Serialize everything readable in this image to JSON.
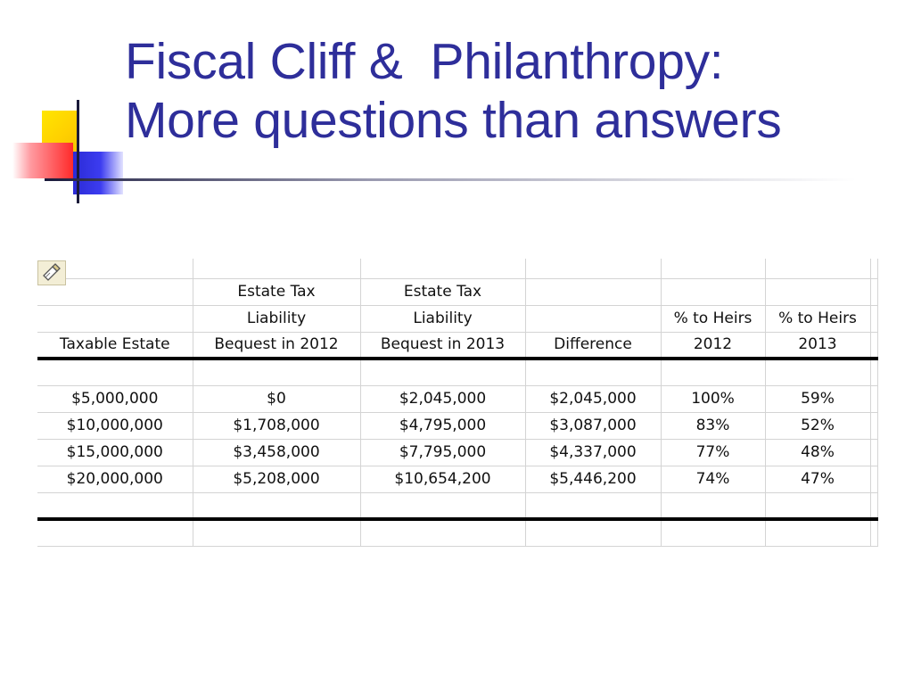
{
  "slide": {
    "title_line1": "Fiscal Cliff &  Philanthropy:",
    "title_line2": "More questions than answers"
  },
  "icons": {
    "decor": "logo-squares",
    "brush": "format-painter-icon"
  },
  "colors": {
    "title": "#2e2e9a",
    "yellow": "#ffd800",
    "red": "#ff2a2a",
    "blue": "#3030e0"
  },
  "table": {
    "headers": {
      "row1": [
        "",
        "Estate Tax",
        "Estate Tax",
        "",
        "",
        ""
      ],
      "row2": [
        "",
        "Liability",
        "Liability",
        "",
        "% to Heirs",
        "% to Heirs"
      ],
      "row3": [
        "Taxable Estate",
        "Bequest in 2012",
        "Bequest in 2013",
        "Difference",
        "2012",
        "2013"
      ]
    },
    "rows": [
      [
        "$5,000,000",
        "$0",
        "$2,045,000",
        "$2,045,000",
        "100%",
        "59%"
      ],
      [
        "$10,000,000",
        "$1,708,000",
        "$4,795,000",
        "$3,087,000",
        "83%",
        "52%"
      ],
      [
        "$15,000,000",
        "$3,458,000",
        "$7,795,000",
        "$4,337,000",
        "77%",
        "48%"
      ],
      [
        "$20,000,000",
        "$5,208,000",
        "$10,654,200",
        "$5,446,200",
        "74%",
        "47%"
      ]
    ]
  }
}
